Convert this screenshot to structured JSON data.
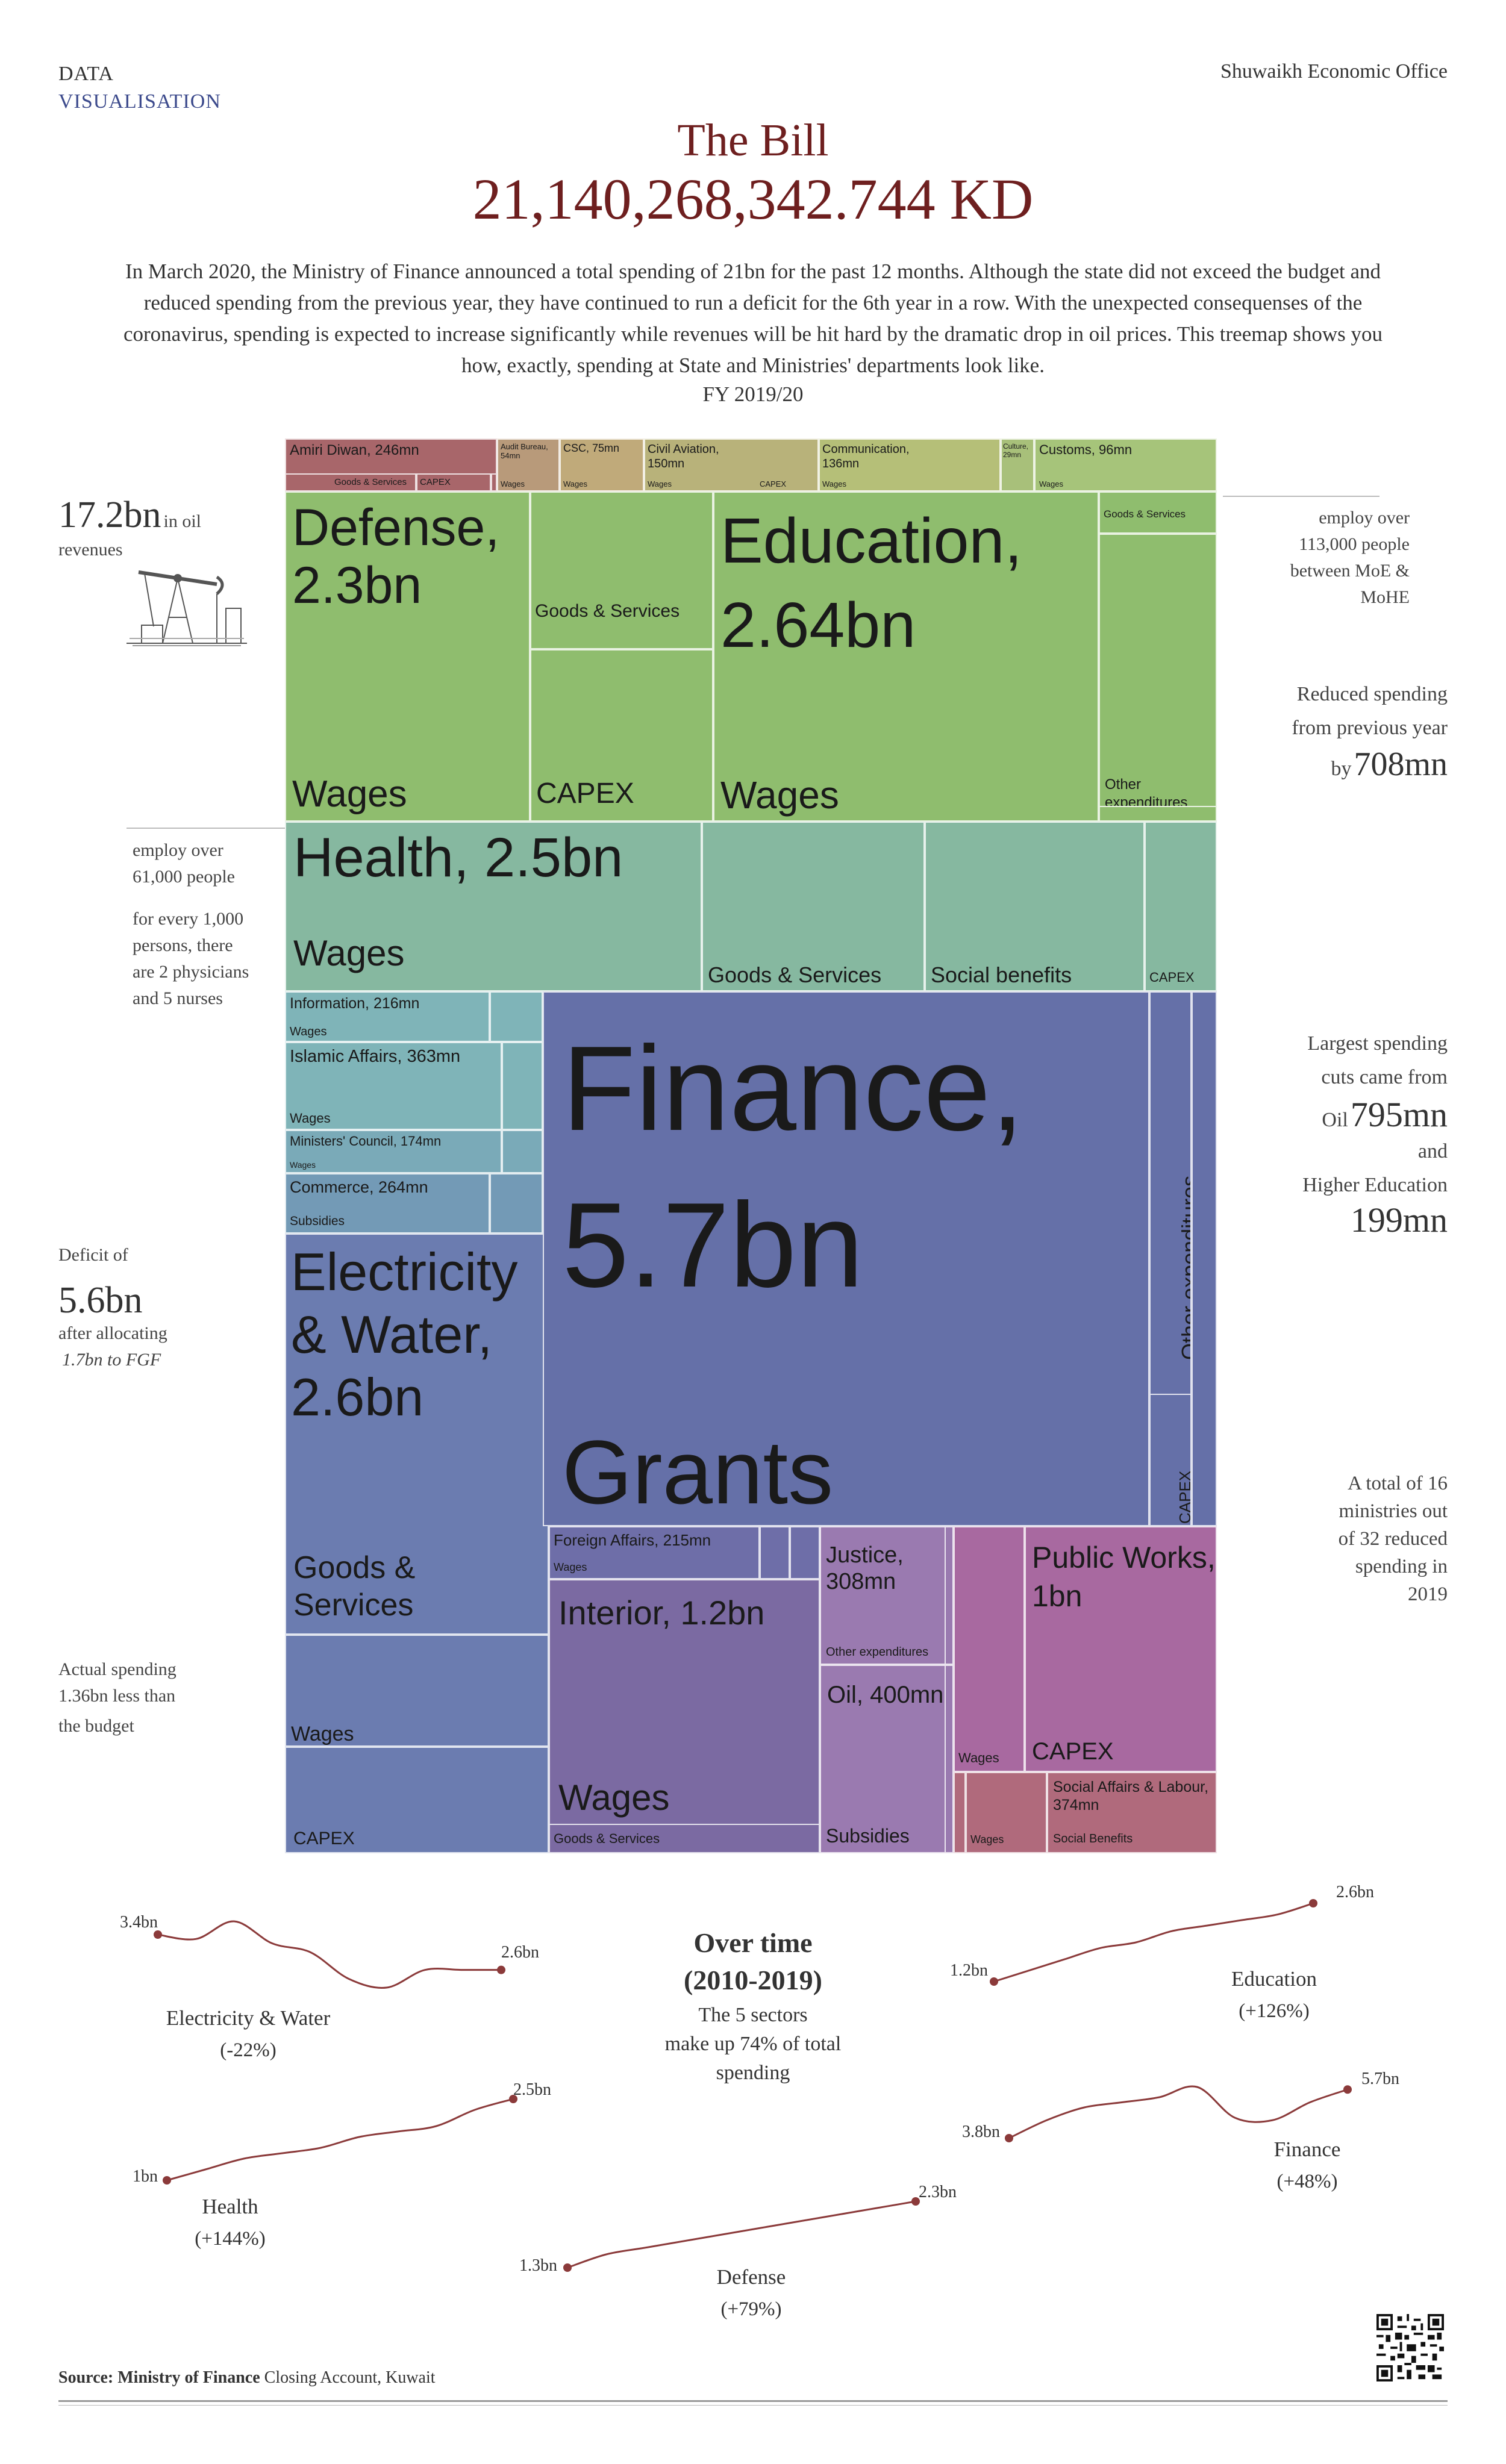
{
  "header": {
    "left_line1": "DATA",
    "left_line2": "VISUALISATION",
    "right": "Shuwaikh Economic Office"
  },
  "title": "The Bill",
  "amount": "21,140,268,342.744 KD",
  "intro": "In March 2020, the Ministry of Finance announced a total spending of 21bn for the past 12 months. Although the state did not exceed the budget and reduced spending from the previous year, they have continued to run a deficit for the 6th year in a row. With the unexpected consequenses of the coronavirus, spending is expected to increase significantly while revenues will be hit hard by the dramatic drop in oil prices. This treemap shows you how, exactly, spending at State and Ministries' departments look like.",
  "fy": "FY 2019/20",
  "side_notes": {
    "oil_big": "17.2bn",
    "oil_small": "in oil",
    "oil_small2": "revenues",
    "edu_1": "employ over",
    "edu_2": "113,000 people",
    "edu_3": "between MoE &",
    "edu_4": "MoHE",
    "red_1": "Reduced spending",
    "red_2": "from previous year",
    "red_3": "by",
    "red_big": "708mn",
    "health_1": "employ over",
    "health_2": "61,000 people",
    "health_3": "for every 1,000",
    "health_4": "persons, there",
    "health_5": "are 2 physicians",
    "health_6": "and 5 nurses",
    "cuts_1": "Largest spending",
    "cuts_2": "cuts came from",
    "cuts_3": "Oil",
    "cuts_big1": "795mn",
    "cuts_4": "and",
    "cuts_5": "Higher Education",
    "cuts_big2": "199mn",
    "def_1": "Deficit of",
    "def_big": "5.6bn",
    "def_2": "after allocating",
    "def_3": "1.7bn to FGF",
    "min_1": "A total of 16",
    "min_2": "ministries out",
    "min_3": "of 32 reduced",
    "min_4": "spending in",
    "min_5": "2019",
    "act_1": "Actual spending",
    "act_2": "1.36bn less than",
    "act_3": "the budget"
  },
  "colors": {
    "title": "#6e1f1f",
    "accent_blue": "#3c4a8c",
    "state": "#a8666a",
    "green": "#8fbd6e",
    "green_light": "#a6c47a",
    "teal": "#86b8a0",
    "teal2": "#7fb4b8",
    "blue": "#6b7cb0",
    "finance": "#6570a8",
    "purple": "#7b6aa2",
    "violet": "#9a7ab0",
    "magenta": "#a869a0",
    "rose": "#b06a7c",
    "spark": "#8b3a3a"
  },
  "chart_data": {
    "type": "treemap",
    "title": "The Bill",
    "unit": "KD",
    "tiles": [
      {
        "name": "Amiri Diwan, 246mn",
        "sub": [
          "Goods & Services",
          "CAPEX"
        ]
      },
      {
        "name": "Audit Bureau, 54mn",
        "sub": [
          "Wages"
        ]
      },
      {
        "name": "CSC, 75mn",
        "sub": [
          "Wages"
        ]
      },
      {
        "name": "Civil Aviation, 150mn",
        "sub": [
          "Wages",
          "CAPEX"
        ]
      },
      {
        "name": "Communication, 136mn",
        "sub": [
          "Wages"
        ]
      },
      {
        "name": "Culture, 29mn",
        "sub": []
      },
      {
        "name": "Customs, 96mn",
        "sub": [
          "Wages"
        ]
      },
      {
        "name": "Defense, 2.3bn",
        "sub": [
          "Wages",
          "Goods & Services",
          "CAPEX"
        ]
      },
      {
        "name": "Education, 2.64bn",
        "sub": [
          "Wages",
          "Goods & Services",
          "Other expenditures"
        ]
      },
      {
        "name": "Health, 2.5bn",
        "sub": [
          "Wages",
          "Goods & Services",
          "Social benefits",
          "CAPEX"
        ]
      },
      {
        "name": "Information, 216mn",
        "sub": [
          "Wages"
        ]
      },
      {
        "name": "Islamic Affairs, 363mn",
        "sub": [
          "Wages"
        ]
      },
      {
        "name": "Ministers' Council, 174mn",
        "sub": [
          "Wages"
        ]
      },
      {
        "name": "Commerce, 264mn",
        "sub": [
          "Subsidies"
        ]
      },
      {
        "name": "Electricity & Water, 2.6bn",
        "sub": [
          "Goods & Services",
          "Wages",
          "CAPEX"
        ]
      },
      {
        "name": "Finance, 5.7bn",
        "sub": [
          "Grants",
          "Other expenditures",
          "CAPEX"
        ]
      },
      {
        "name": "Foreign Affairs, 215mn",
        "sub": [
          "Wages"
        ]
      },
      {
        "name": "Interior, 1.2bn",
        "sub": [
          "Wages",
          "Goods & Services"
        ]
      },
      {
        "name": "Justice, 308mn",
        "sub": [
          "Other expenditures"
        ]
      },
      {
        "name": "Oil, 400mn",
        "sub": [
          "Subsidies"
        ]
      },
      {
        "name": "Public Works, 1bn",
        "sub": [
          "Wages",
          "CAPEX"
        ]
      },
      {
        "name": "Social Affairs & Labour, 374mn",
        "sub": [
          "Wages",
          "Social Benefits"
        ]
      }
    ],
    "overtime": {
      "title": "Over time",
      "period": "(2010-2019)",
      "subtitle_1": "The 5 sectors",
      "subtitle_2": "make up 74% of total",
      "subtitle_3": "spending",
      "years": [
        2010,
        2011,
        2012,
        2013,
        2014,
        2015,
        2016,
        2017,
        2018,
        2019
      ],
      "series": [
        {
          "name": "Electricity & Water",
          "change": "(-22%)",
          "start_label": "3.4bn",
          "end_label": "2.6bn",
          "values": [
            3.4,
            3.3,
            3.7,
            3.2,
            3.0,
            2.4,
            2.2,
            2.6,
            2.6,
            2.6
          ]
        },
        {
          "name": "Education",
          "change": "(+126%)",
          "start_label": "1.2bn",
          "end_label": "2.6bn",
          "values": [
            1.2,
            1.4,
            1.6,
            1.8,
            1.9,
            2.1,
            2.2,
            2.3,
            2.4,
            2.6
          ]
        },
        {
          "name": "Health",
          "change": "(+144%)",
          "start_label": "1bn",
          "end_label": "2.5bn",
          "values": [
            1.0,
            1.2,
            1.4,
            1.5,
            1.6,
            1.8,
            1.9,
            2.0,
            2.3,
            2.5
          ]
        },
        {
          "name": "Finance",
          "change": "(+48%)",
          "start_label": "3.8bn",
          "end_label": "5.7bn",
          "values": [
            3.8,
            4.5,
            5.0,
            5.2,
            5.4,
            5.8,
            4.6,
            4.5,
            5.2,
            5.7
          ]
        },
        {
          "name": "Defense",
          "change": "(+79%)",
          "start_label": "1.3bn",
          "end_label": "2.3bn",
          "values": [
            1.3,
            1.5,
            1.6,
            1.7,
            1.8,
            1.9,
            2.0,
            2.1,
            2.2,
            2.3
          ]
        }
      ]
    }
  },
  "source": {
    "bold": "Source: Ministry of Finance",
    "rest": " Closing Account, Kuwait"
  }
}
